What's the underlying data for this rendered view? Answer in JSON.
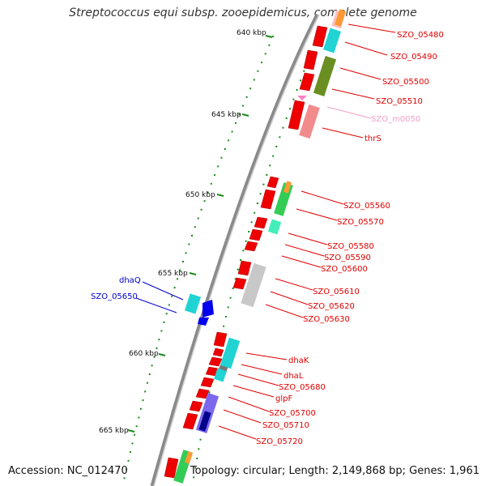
{
  "title": "Streptococcus equi subsp. zooepidemicus, complete genome",
  "accession": "Accession: NC_012470",
  "topology": "Topology: circular; Length: 2,149,868 bp; Genes: 1,961",
  "colors": {
    "backbone": "#777777",
    "tick": "#1a8a1a",
    "red_label": "#e00000",
    "pink_label": "#f0a0c8",
    "blue_label": "#0000cc"
  },
  "ticks": [
    "640 kbp",
    "645 kbp",
    "650 kbp",
    "655 kbp",
    "660 kbp",
    "665 kbp"
  ],
  "gene_labels": [
    {
      "name": "SZO_05480",
      "color": "red"
    },
    {
      "name": "SZO_05490",
      "color": "red"
    },
    {
      "name": "SZO_05500",
      "color": "red"
    },
    {
      "name": "SZO_05510",
      "color": "red"
    },
    {
      "name": "SZO_m0050",
      "color": "pink"
    },
    {
      "name": "thrS",
      "color": "red"
    },
    {
      "name": "SZO_05560",
      "color": "red"
    },
    {
      "name": "SZO_05570",
      "color": "red"
    },
    {
      "name": "SZO_05580",
      "color": "red"
    },
    {
      "name": "SZO_05590",
      "color": "red"
    },
    {
      "name": "SZO_05600",
      "color": "red"
    },
    {
      "name": "SZO_05610",
      "color": "red"
    },
    {
      "name": "SZO_05620",
      "color": "red"
    },
    {
      "name": "SZO_05630",
      "color": "red"
    },
    {
      "name": "dhaK",
      "color": "red"
    },
    {
      "name": "dhaL",
      "color": "red"
    },
    {
      "name": "SZO_05680",
      "color": "red"
    },
    {
      "name": "glpF",
      "color": "red"
    },
    {
      "name": "SZO_05700",
      "color": "red"
    },
    {
      "name": "SZO_05710",
      "color": "red"
    },
    {
      "name": "SZO_05720",
      "color": "red"
    },
    {
      "name": "dhaQ",
      "color": "blue"
    },
    {
      "name": "SZO_05650",
      "color": "blue"
    }
  ]
}
